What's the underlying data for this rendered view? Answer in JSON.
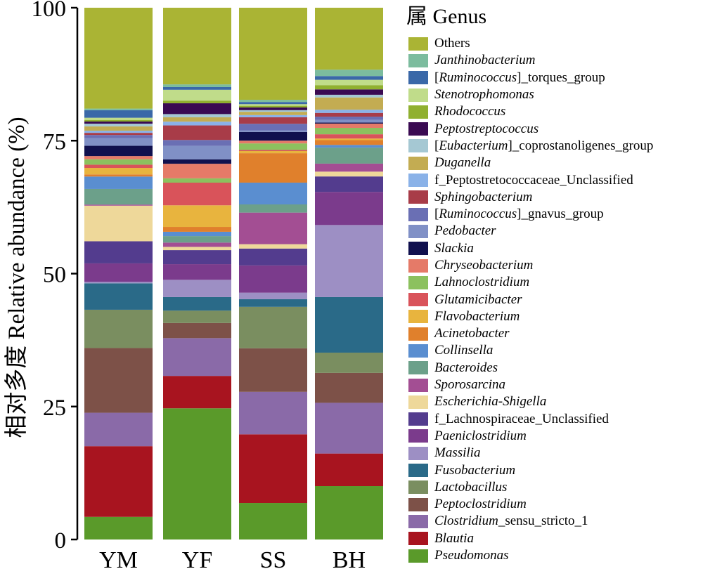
{
  "chart_data": {
    "type": "bar",
    "stacked": true,
    "ylabel": "相对多度 Relative abundance (%)",
    "ylim": [
      0,
      100
    ],
    "yticks": [
      "0",
      "25",
      "50",
      "75",
      "100"
    ],
    "categories": [
      "YM",
      "YF",
      "SS",
      "BH"
    ],
    "legend_title": "属 Genus",
    "legend_position": "right",
    "series": [
      {
        "name": "Pseudomonas",
        "italic": true,
        "color": "#5a9a2a",
        "values": [
          4.2,
          24.3,
          6.7,
          10.0
        ]
      },
      {
        "name": "Blautia",
        "italic": true,
        "color": "#a8141f",
        "values": [
          13.1,
          6.0,
          12.6,
          6.1
        ]
      },
      {
        "name": "Clostridium_sensu_stricto_1",
        "italic": false,
        "prefix": "Clostridium",
        "suffix": "_sensu_stricto_1",
        "color": "#8a6aa8",
        "values": [
          6.2,
          7.0,
          7.8,
          9.5
        ]
      },
      {
        "name": "Peptoclostridium",
        "italic": true,
        "color": "#7d5148",
        "values": [
          12.0,
          2.8,
          8.0,
          5.6
        ]
      },
      {
        "name": "Lactobacillus",
        "italic": true,
        "color": "#7a8e60",
        "values": [
          7.1,
          2.3,
          7.6,
          3.8
        ]
      },
      {
        "name": "Fusobacterium",
        "italic": true,
        "color": "#2a6a88",
        "values": [
          4.9,
          2.5,
          1.4,
          10.4
        ]
      },
      {
        "name": "Massilia",
        "italic": true,
        "color": "#9d8fc4",
        "values": [
          0.3,
          3.2,
          1.2,
          13.5
        ]
      },
      {
        "name": "Paeniclostridium",
        "italic": true,
        "color": "#7b3b8c",
        "values": [
          3.4,
          2.9,
          5.0,
          6.2
        ]
      },
      {
        "name": "f_Lachnospiraceae_Unclassified",
        "italic": false,
        "color": "#533c8e",
        "values": [
          4.1,
          2.6,
          3.1,
          2.9
        ]
      },
      {
        "name": "Escherichia-Shigella",
        "italic": true,
        "color": "#eed89a",
        "values": [
          6.6,
          0.6,
          0.8,
          0.9
        ]
      },
      {
        "name": "Sporosarcina",
        "italic": true,
        "color": "#a34e93",
        "values": [
          0.2,
          0.8,
          5.8,
          1.5
        ]
      },
      {
        "name": "Bacteroides",
        "italic": true,
        "color": "#6ca08a",
        "values": [
          2.9,
          1.2,
          1.5,
          3.0
        ]
      },
      {
        "name": "Collinsella",
        "italic": true,
        "color": "#5a8ed0",
        "values": [
          2.3,
          0.8,
          4.0,
          0.5
        ]
      },
      {
        "name": "Acinetobacter",
        "italic": true,
        "color": "#e0802c",
        "values": [
          0.4,
          0.9,
          5.4,
          0.9
        ]
      },
      {
        "name": "Flavobacterium",
        "italic": true,
        "color": "#e8b43e",
        "values": [
          1.2,
          4.0,
          0.4,
          0.3
        ]
      },
      {
        "name": "Glutamicibacter",
        "italic": true,
        "color": "#d9535a",
        "values": [
          0.6,
          4.2,
          0.2,
          0.8
        ]
      },
      {
        "name": "Lahnoclostridium",
        "italic": true,
        "color": "#8cc15e",
        "values": [
          1.0,
          0.8,
          1.2,
          1.2
        ]
      },
      {
        "name": "Chryseobacterium",
        "italic": true,
        "color": "#e57a68",
        "values": [
          0.6,
          2.7,
          0.5,
          0.8
        ]
      },
      {
        "name": "Slackia",
        "italic": true,
        "color": "#10104e",
        "values": [
          1.9,
          0.8,
          1.6,
          0.2
        ]
      },
      {
        "name": "Pedobacter",
        "italic": true,
        "color": "#8090c6",
        "values": [
          1.4,
          2.5,
          0.3,
          0.5
        ]
      },
      {
        "name": "[Ruminococcus]_gnavus_group",
        "italic": false,
        "prefix": "[",
        "mid": "Ruminococcus",
        "suffix": "]_gnavus_group",
        "color": "#6a6fb4",
        "values": [
          0.6,
          1.1,
          1.2,
          0.6
        ]
      },
      {
        "name": "Sphingobacterium",
        "italic": true,
        "color": "#a83c48",
        "values": [
          0.4,
          2.7,
          1.2,
          0.7
        ]
      },
      {
        "name": "f_Peptostretococcaceae_Unclassified",
        "italic": false,
        "color": "#8ab2e8",
        "values": [
          0.4,
          0.7,
          0.4,
          0.6
        ]
      },
      {
        "name": "Duganella",
        "italic": true,
        "color": "#c3ac52",
        "values": [
          0.8,
          0.8,
          0.6,
          2.3
        ]
      },
      {
        "name": "[Eubacterium]_coprostanoligenes_group",
        "italic": false,
        "prefix": "[",
        "mid": "Eubacterium",
        "suffix": "]_coprostanoligenes_group",
        "color": "#a5c8d3",
        "values": [
          0.5,
          0.6,
          0.3,
          0.5
        ]
      },
      {
        "name": "Peptostreptococcus",
        "italic": true,
        "color": "#3a0a52",
        "values": [
          0.4,
          2.0,
          0.5,
          1.0
        ]
      },
      {
        "name": "Rhodococcus",
        "italic": true,
        "color": "#90b030",
        "values": [
          0.3,
          0.5,
          0.3,
          0.8
        ]
      },
      {
        "name": "Stenotrophomonas",
        "italic": true,
        "color": "#c0dc8a",
        "values": [
          0.4,
          2.0,
          0.3,
          1.0
        ]
      },
      {
        "name": "[Ruminococcus]_torques_group",
        "italic": false,
        "prefix": "[",
        "mid": "Ruminococcus",
        "suffix": "]_torques_group",
        "color": "#3a68a8",
        "values": [
          1.4,
          0.5,
          0.4,
          0.7
        ]
      },
      {
        "name": "Janthinobacterium",
        "italic": true,
        "color": "#7cbc9e",
        "values": [
          0.3,
          0.5,
          0.4,
          1.2
        ]
      },
      {
        "name": "Others",
        "italic": false,
        "color": "#aab434",
        "values": [
          18.7,
          14.2,
          16.9,
          11.6
        ]
      }
    ]
  }
}
